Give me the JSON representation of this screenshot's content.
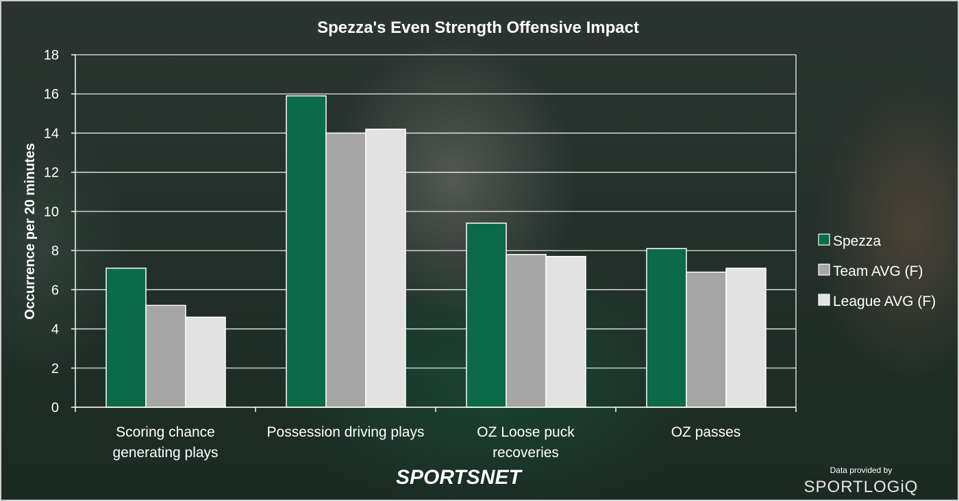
{
  "chart_data": {
    "type": "bar",
    "title": "Spezza's Even Strength Offensive Impact",
    "ylabel": "Occurrence per 20 minutes",
    "xlabel": "",
    "ylim": [
      0,
      18
    ],
    "yticks": [
      0,
      2,
      4,
      6,
      8,
      10,
      12,
      14,
      16,
      18
    ],
    "grid": true,
    "legend_position": "right",
    "categories": [
      [
        "Scoring chance",
        "generating plays"
      ],
      [
        "Possession driving plays"
      ],
      [
        "OZ Loose puck",
        "recoveries"
      ],
      [
        "OZ passes"
      ]
    ],
    "series": [
      {
        "name": "Spezza",
        "color": "#0b6a4a",
        "values": [
          7.1,
          15.9,
          9.4,
          8.1
        ]
      },
      {
        "name": "Team AVG (F)",
        "color": "#a6a6a6",
        "values": [
          5.2,
          14.0,
          7.8,
          6.9
        ]
      },
      {
        "name": "League AVG (F)",
        "color": "#e2e2e2",
        "values": [
          4.6,
          14.2,
          7.7,
          7.1
        ]
      }
    ]
  },
  "branding": {
    "sportsnet": "SPORTSNET",
    "credit_label": "Data provided by",
    "sportlogiq": "SPORTLOGiQ"
  }
}
